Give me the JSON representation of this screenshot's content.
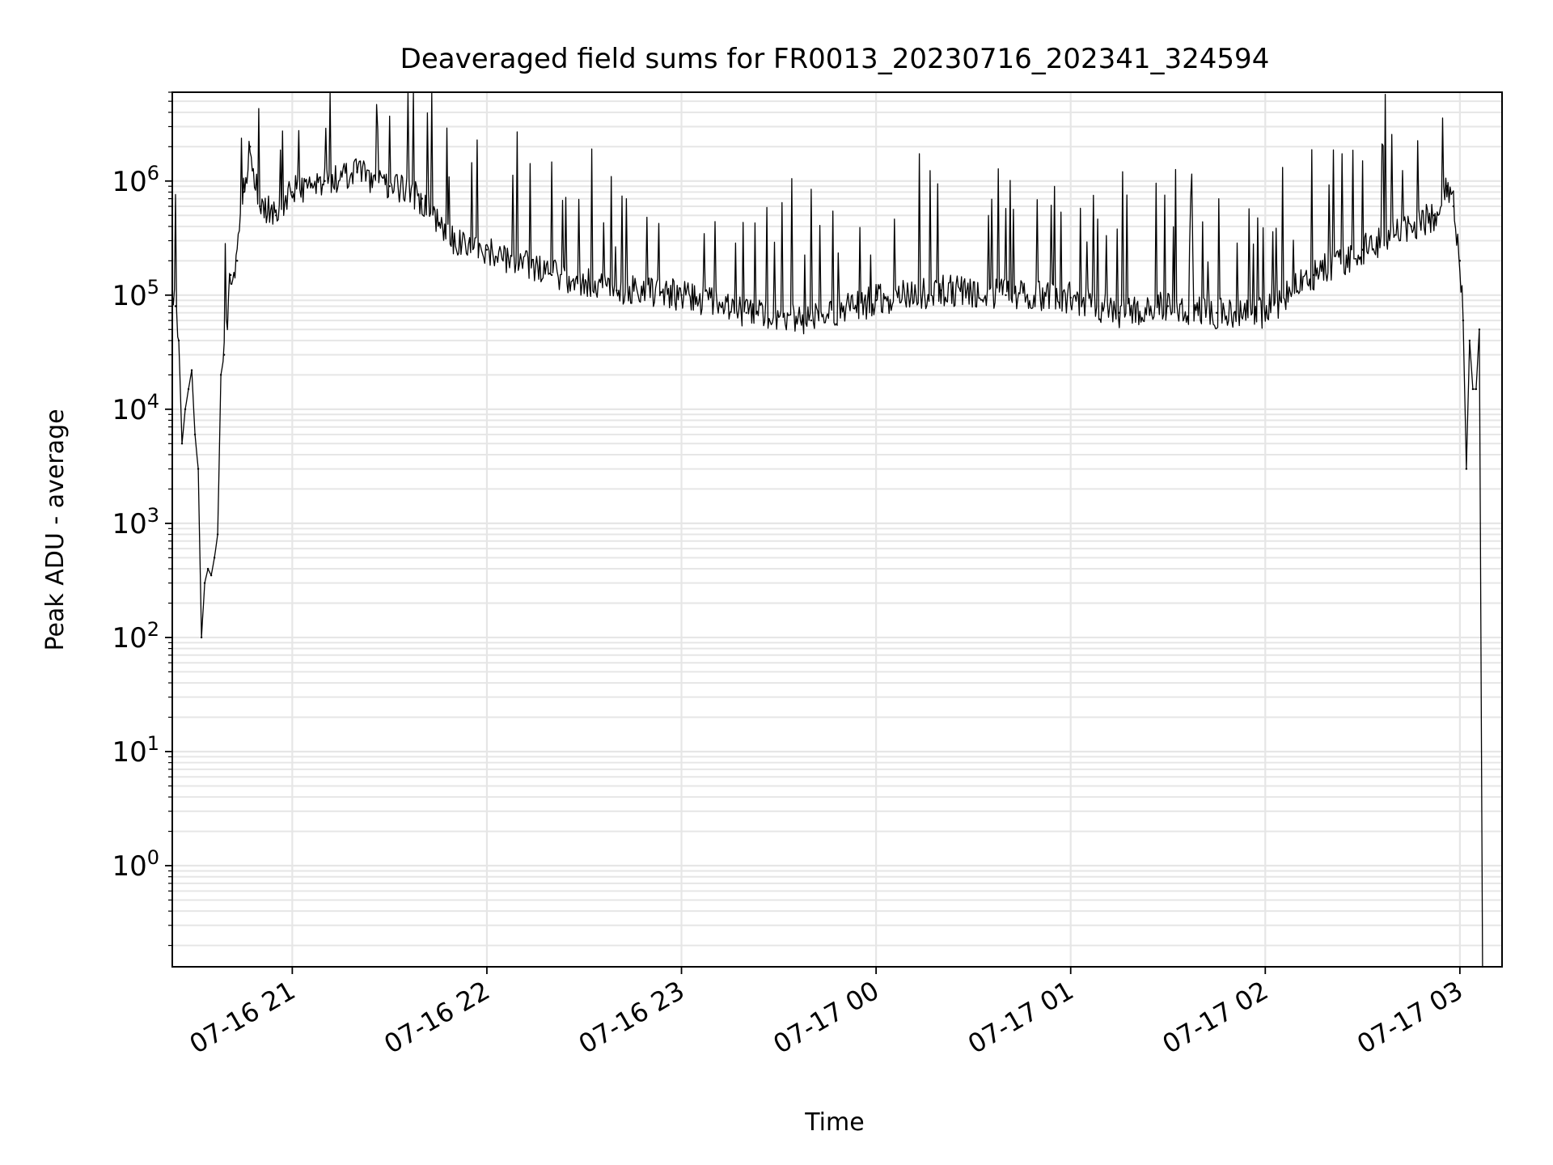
{
  "chart_data": {
    "type": "line",
    "title": "Deaveraged field sums for FR0013_20230716_202341_324594",
    "xlabel": "Time",
    "ylabel": "Peak ADU - average",
    "y_scale": "log",
    "ylim": [
      0.13,
      6000000
    ],
    "xlim": [
      "2023-07-16 20:23",
      "2023-07-17 03:13"
    ],
    "grid": true,
    "legend": "none",
    "line_color": "#000000",
    "x_ticks": [
      {
        "value": "2023-07-16 21:00",
        "label": "07-16 21"
      },
      {
        "value": "2023-07-16 22:00",
        "label": "07-16 22"
      },
      {
        "value": "2023-07-16 23:00",
        "label": "07-16 23"
      },
      {
        "value": "2023-07-17 00:00",
        "label": "07-17 00"
      },
      {
        "value": "2023-07-17 01:00",
        "label": "07-17 01"
      },
      {
        "value": "2023-07-17 02:00",
        "label": "07-17 02"
      },
      {
        "value": "2023-07-17 03:00",
        "label": "07-17 03"
      }
    ],
    "y_ticks": [
      {
        "value": 1,
        "base": "10",
        "exp": "0"
      },
      {
        "value": 10,
        "base": "10",
        "exp": "1"
      },
      {
        "value": 100,
        "base": "10",
        "exp": "2"
      },
      {
        "value": 1000,
        "base": "10",
        "exp": "3"
      },
      {
        "value": 10000,
        "base": "10",
        "exp": "4"
      },
      {
        "value": 100000,
        "base": "10",
        "exp": "5"
      },
      {
        "value": 1000000,
        "base": "10",
        "exp": "6"
      }
    ],
    "series": [
      {
        "x": [
          "2023-07-16 20:23:00",
          "2023-07-16 20:24:00",
          "2023-07-16 20:25:00",
          "2023-07-16 20:26:00",
          "2023-07-16 20:27:00",
          "2023-07-16 20:28:00",
          "2023-07-16 20:29:00",
          "2023-07-16 20:30:00",
          "2023-07-16 20:31:00",
          "2023-07-16 20:32:00",
          "2023-07-16 20:33:00",
          "2023-07-16 20:34:00",
          "2023-07-16 20:35:00",
          "2023-07-16 20:36:00",
          "2023-07-16 20:37:00",
          "2023-07-16 20:38:00",
          "2023-07-16 20:39:00",
          "2023-07-16 20:41:00",
          "2023-07-16 20:43:00",
          "2023-07-16 20:45:00",
          "2023-07-16 20:47:00",
          "2023-07-16 20:50:00",
          "2023-07-16 20:55:00",
          "2023-07-16 21:00:00",
          "2023-07-16 21:10:00",
          "2023-07-16 21:20:00",
          "2023-07-16 21:30:00",
          "2023-07-16 21:40:00",
          "2023-07-16 21:50:00",
          "2023-07-16 22:00:00",
          "2023-07-16 22:20:00",
          "2023-07-16 22:40:00",
          "2023-07-16 23:00:00",
          "2023-07-16 23:20:00",
          "2023-07-16 23:40:00",
          "2023-07-17 00:00:00",
          "2023-07-17 00:20:00",
          "2023-07-17 00:40:00",
          "2023-07-17 01:00:00",
          "2023-07-17 01:15:00",
          "2023-07-17 01:30:00",
          "2023-07-17 01:45:00",
          "2023-07-17 02:00:00",
          "2023-07-17 02:15:00",
          "2023-07-17 02:30:00",
          "2023-07-17 02:45:00",
          "2023-07-17 02:52:00",
          "2023-07-17 02:56:00",
          "2023-07-17 02:58:00",
          "2023-07-17 03:00:00",
          "2023-07-17 03:01:00",
          "2023-07-17 03:02:00",
          "2023-07-17 03:03:00",
          "2023-07-17 03:04:00",
          "2023-07-17 03:05:00",
          "2023-07-17 03:06:00",
          "2023-07-17 03:07:00"
        ],
        "y": [
          90000,
          80000,
          40000,
          5000,
          10000,
          15000,
          22000,
          6000,
          3000,
          100,
          300,
          400,
          350,
          500,
          800,
          20000,
          30000,
          150000,
          200000,
          800000,
          2000000,
          600000,
          500000,
          800000,
          1000000,
          1200000,
          900000,
          700000,
          300000,
          250000,
          150000,
          110000,
          100000,
          70000,
          60000,
          90000,
          110000,
          100000,
          95000,
          70000,
          80000,
          70000,
          70000,
          150000,
          250000,
          400000,
          500000,
          900000,
          600000,
          200000,
          60000,
          3000,
          40000,
          15000,
          15000,
          50000,
          0.13
        ]
      }
    ]
  }
}
